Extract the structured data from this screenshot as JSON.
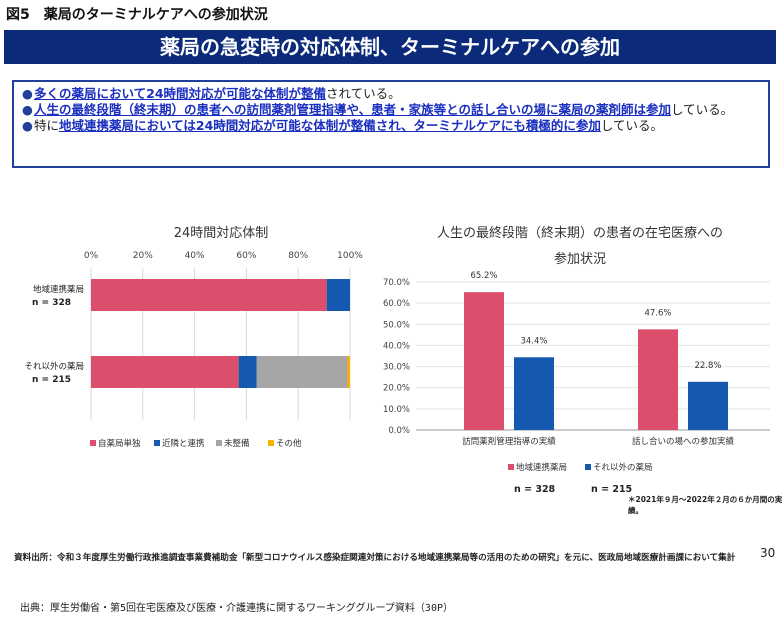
{
  "header": {
    "figure_title": "図5　薬局のターミナルケアへの参加状況",
    "banner": "薬局の急変時の対応体制、ターミナルケアへの参加"
  },
  "summary": {
    "b1_hl": "多くの薬局において24時間対応が可能な体制が整備",
    "b1_tail": "されている。",
    "b2_hl": "人生の最終段階（終末期）の患者への訪問薬剤管理指導や、患者・家族等との話し合いの場に薬局の薬剤師は参加",
    "b2_tail": "している。",
    "b3_head": "特に",
    "b3_hl": "地域連携薬局においては24時間対応が可能な体制が整備され、ターミナルケアにも積極的に参加",
    "b3_tail": "している。"
  },
  "chart_data": [
    {
      "type": "bar",
      "orientation": "horizontal",
      "stacked": true,
      "title": "24時間対応体制",
      "categories": [
        "地域連携薬局",
        "それ以外の薬局"
      ],
      "sample_sizes": [
        "n = 328",
        "n = 215"
      ],
      "x_ticks": [
        "0%",
        "20%",
        "40%",
        "60%",
        "80%",
        "100%"
      ],
      "xlim": [
        0,
        100
      ],
      "series": [
        {
          "name": "自薬局単独",
          "color": "#db4f6c",
          "values": [
            91,
            57
          ]
        },
        {
          "name": "近隣と連携",
          "color": "#1559b0",
          "values": [
            9,
            7
          ]
        },
        {
          "name": "未整備",
          "color": "#a6a6a6",
          "values": [
            0,
            35
          ]
        },
        {
          "name": "その他",
          "color": "#f2b400",
          "values": [
            0,
            1
          ]
        }
      ],
      "legend": "bottom"
    },
    {
      "type": "bar",
      "orientation": "vertical",
      "title_line1": "人生の最終段階（終末期）の患者の在宅医療への",
      "title_line2": "参加状況",
      "categories": [
        "訪問薬剤管理指導の実績",
        "話し合いの場への参加実績"
      ],
      "y_ticks": [
        "0.0%",
        "10.0%",
        "20.0%",
        "30.0%",
        "40.0%",
        "50.0%",
        "60.0%",
        "70.0%"
      ],
      "ylim": [
        0,
        70
      ],
      "series": [
        {
          "name": "地域連携薬局",
          "n": "n = 328",
          "color": "#db4f6c",
          "values": [
            65.2,
            47.6
          ],
          "labels": [
            "65.2%",
            "47.6%"
          ]
        },
        {
          "name": "それ以外の薬局",
          "n": "n = 215",
          "color": "#1559b0",
          "values": [
            34.4,
            22.8
          ],
          "labels": [
            "34.4%",
            "22.8%"
          ]
        }
      ],
      "note": "＊2021年９月～2022年２月の６か月間の実績。",
      "legend": "bottom"
    }
  ],
  "footer": {
    "source": "資料出所：令和３年度厚生労働行政推進調査事業費補助金「新型コロナウイルス感染症関連対策における地域連携薬局等の活用のための研究」を元に、医政局地域医療計画課において集計",
    "page_number": "30",
    "credit": "出典：厚生労働省・第5回在宅医療及び医療・介護連携に関するワーキンググループ資料（30P）"
  }
}
